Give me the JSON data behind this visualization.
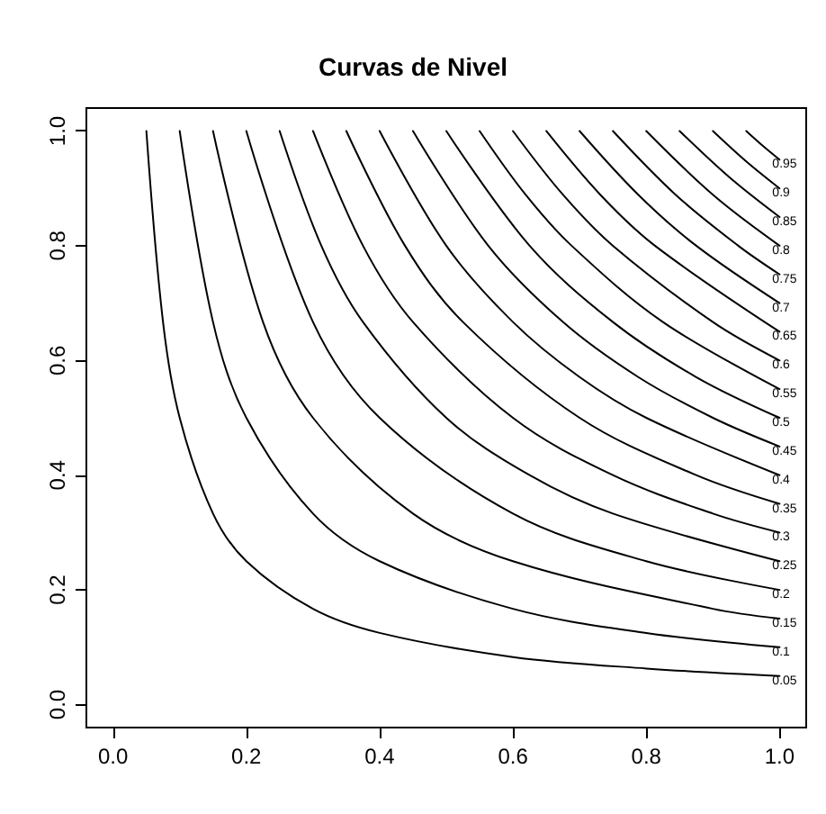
{
  "chart_data": {
    "type": "line",
    "title": "Curvas de Nivel",
    "marker": "none",
    "line_style": "solid",
    "xlim": [
      -0.04,
      1.04
    ],
    "ylim": [
      -0.04,
      1.04
    ],
    "xticks": [
      {
        "value": 0,
        "label": "0.0"
      },
      {
        "value": 0.2,
        "label": "0.2"
      },
      {
        "value": 0.4,
        "label": "0.4"
      },
      {
        "value": 0.6,
        "label": "0.6"
      },
      {
        "value": 0.8,
        "label": "0.8"
      },
      {
        "value": 1,
        "label": "1.0"
      }
    ],
    "yticks": [
      {
        "value": 0,
        "label": "0.0"
      },
      {
        "value": 0.2,
        "label": "0.2"
      },
      {
        "value": 0.4,
        "label": "0.4"
      },
      {
        "value": 0.6,
        "label": "0.6"
      },
      {
        "value": 0.8,
        "label": "0.8"
      },
      {
        "value": 1,
        "label": "1.0"
      }
    ],
    "series": [
      {
        "name": "0.05",
        "color": "#000000",
        "x": [
          0.05,
          0.075,
          0.1,
          0.15,
          0.2,
          0.3,
          0.4,
          0.6,
          0.8,
          1
        ],
        "values": [
          1,
          0.667,
          0.5,
          0.333,
          0.25,
          0.167,
          0.125,
          0.083,
          0.063,
          0.05
        ]
      },
      {
        "name": "0.1",
        "color": "#000000",
        "x": [
          0.1,
          0.15,
          0.2,
          0.3,
          0.4,
          0.6,
          0.8,
          1
        ],
        "values": [
          1,
          0.667,
          0.5,
          0.333,
          0.25,
          0.167,
          0.125,
          0.1
        ]
      },
      {
        "name": "0.15",
        "color": "#000000",
        "x": [
          0.15,
          0.225,
          0.3,
          0.45,
          0.6,
          0.9,
          1
        ],
        "values": [
          1,
          0.667,
          0.5,
          0.333,
          0.25,
          0.167,
          0.15
        ]
      },
      {
        "name": "0.2",
        "color": "#000000",
        "x": [
          0.2,
          0.3,
          0.4,
          0.6,
          0.8,
          1
        ],
        "values": [
          1,
          0.667,
          0.5,
          0.333,
          0.25,
          0.2
        ]
      },
      {
        "name": "0.25",
        "color": "#000000",
        "x": [
          0.25,
          0.3125,
          0.375,
          0.5,
          0.625,
          0.75,
          1
        ],
        "values": [
          1,
          0.8,
          0.667,
          0.5,
          0.4,
          0.333,
          0.25
        ]
      },
      {
        "name": "0.3",
        "color": "#000000",
        "x": [
          0.3,
          0.375,
          0.45,
          0.6,
          0.75,
          0.9,
          1
        ],
        "values": [
          1,
          0.8,
          0.667,
          0.5,
          0.4,
          0.333,
          0.3
        ]
      },
      {
        "name": "0.35",
        "color": "#000000",
        "x": [
          0.35,
          0.438,
          0.525,
          0.7,
          0.875,
          1
        ],
        "values": [
          1,
          0.8,
          0.667,
          0.5,
          0.4,
          0.35
        ]
      },
      {
        "name": "0.4",
        "color": "#000000",
        "x": [
          0.4,
          0.5,
          0.6,
          0.7,
          0.8,
          1
        ],
        "values": [
          1,
          0.8,
          0.667,
          0.571,
          0.5,
          0.4
        ]
      },
      {
        "name": "0.45",
        "color": "#000000",
        "x": [
          0.45,
          0.563,
          0.675,
          0.788,
          0.9,
          1
        ],
        "values": [
          1,
          0.8,
          0.667,
          0.571,
          0.5,
          0.45
        ]
      },
      {
        "name": "0.5",
        "color": "#000000",
        "x": [
          0.5,
          0.625,
          0.75,
          0.875,
          1
        ],
        "values": [
          1,
          0.8,
          0.667,
          0.571,
          0.5
        ]
      },
      {
        "name": "0.55",
        "color": "#000000",
        "x": [
          0.55,
          0.619,
          0.688,
          0.825,
          1
        ],
        "values": [
          1,
          0.889,
          0.8,
          0.667,
          0.55
        ]
      },
      {
        "name": "0.6",
        "color": "#000000",
        "x": [
          0.6,
          0.675,
          0.75,
          0.9,
          1
        ],
        "values": [
          1,
          0.889,
          0.8,
          0.667,
          0.6
        ]
      },
      {
        "name": "0.65",
        "color": "#000000",
        "x": [
          0.65,
          0.731,
          0.813,
          1
        ],
        "values": [
          1,
          0.889,
          0.8,
          0.65
        ]
      },
      {
        "name": "0.7",
        "color": "#000000",
        "x": [
          0.7,
          0.788,
          0.875,
          1
        ],
        "values": [
          1,
          0.889,
          0.8,
          0.7
        ]
      },
      {
        "name": "0.75",
        "color": "#000000",
        "x": [
          0.75,
          0.844,
          0.938,
          1
        ],
        "values": [
          1,
          0.889,
          0.8,
          0.75
        ]
      },
      {
        "name": "0.8",
        "color": "#000000",
        "x": [
          0.8,
          0.9,
          1
        ],
        "values": [
          1,
          0.889,
          0.8
        ]
      },
      {
        "name": "0.85",
        "color": "#000000",
        "x": [
          0.85,
          0.925,
          1
        ],
        "values": [
          1,
          0.919,
          0.85
        ]
      },
      {
        "name": "0.9",
        "color": "#000000",
        "x": [
          0.9,
          0.95,
          1
        ],
        "values": [
          1,
          0.947,
          0.9
        ]
      },
      {
        "name": "0.95",
        "color": "#000000",
        "x": [
          0.95,
          0.975,
          1
        ],
        "values": [
          1,
          0.974,
          0.95
        ]
      }
    ]
  }
}
